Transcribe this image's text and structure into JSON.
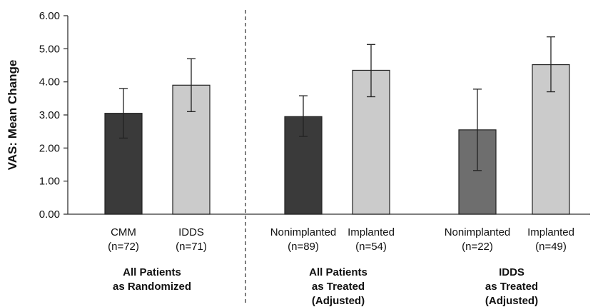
{
  "chart_data": {
    "type": "bar",
    "ylabel": "VAS: Mean Change",
    "ylim": [
      0,
      6
    ],
    "yticks": [
      "0.00",
      "1.00",
      "2.00",
      "3.00",
      "4.00",
      "5.00",
      "6.00"
    ],
    "grid": false,
    "bars": [
      {
        "label": [
          "CMM",
          "(n=72)"
        ],
        "value": 3.05,
        "err_low": 2.3,
        "err_high": 3.8,
        "color": "#3a3a3a"
      },
      {
        "label": [
          "IDDS",
          "(n=71)"
        ],
        "value": 3.9,
        "err_low": 3.1,
        "err_high": 4.7,
        "color": "#cbcbcb"
      },
      {
        "label": [
          "Nonimplanted",
          "(n=89)"
        ],
        "value": 2.95,
        "err_low": 2.35,
        "err_high": 3.58,
        "color": "#3a3a3a"
      },
      {
        "label": [
          "Implanted",
          "(n=54)"
        ],
        "value": 4.35,
        "err_low": 3.55,
        "err_high": 5.13,
        "color": "#cbcbcb"
      },
      {
        "label": [
          "Nonimplanted",
          "(n=22)"
        ],
        "value": 2.55,
        "err_low": 1.32,
        "err_high": 3.78,
        "color": "#6e6e6e"
      },
      {
        "label": [
          "Implanted",
          "(n=49)"
        ],
        "value": 4.52,
        "err_low": 3.7,
        "err_high": 5.36,
        "color": "#cbcbcb"
      }
    ],
    "groups": [
      {
        "label": [
          "All Patients",
          "as Randomized"
        ]
      },
      {
        "label": [
          "All Patients",
          "as Treated",
          "(Adjusted)"
        ]
      },
      {
        "label": [
          "IDDS",
          "as Treated",
          "(Adjusted)"
        ]
      }
    ],
    "divider": "dashed line between groups 1 and 2"
  }
}
